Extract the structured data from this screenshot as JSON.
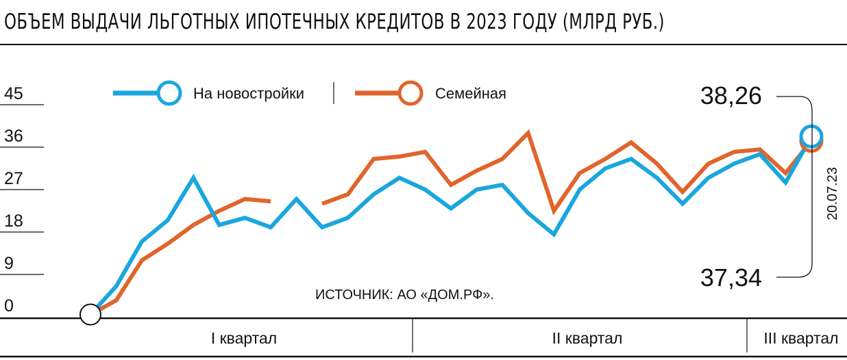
{
  "title": "ОБЪЕМ ВЫДАЧИ ЛЬГОТНЫХ ИПОТЕЧНЫХ КРЕДИТОВ В 2023 ГОДУ (МЛРД РУБ.)",
  "source": "ИСТОЧНИК: АО «ДОМ.РФ».",
  "legend": {
    "new_buildings": "На новостройки",
    "family": "Семейная"
  },
  "quarters": [
    "I квартал",
    "II квартал",
    "III квартал"
  ],
  "end_values": {
    "new_buildings": "38,26",
    "family": "37,34"
  },
  "end_date": "20.07.23",
  "colors": {
    "new_buildings": "#1aa6df",
    "family": "#e0652c"
  },
  "chart_data": {
    "type": "line",
    "title": "ОБЪЕМ ВЫДАЧИ ЛЬГОТНЫХ ИПОТЕЧНЫХ КРЕДИТОВ В 2023 ГОДУ (МЛРД РУБ.)",
    "xlabel": "",
    "ylabel": "",
    "ylim": [
      0,
      45
    ],
    "yticks": [
      0,
      9,
      18,
      27,
      36,
      45
    ],
    "grid": false,
    "legend_position": "top",
    "x": [
      0,
      1,
      2,
      3,
      4,
      5,
      6,
      7,
      8,
      9,
      10,
      11,
      12,
      13,
      14,
      15,
      16,
      17,
      18,
      19,
      20,
      21,
      22,
      23,
      24,
      25,
      26,
      27,
      28
    ],
    "x_groups": [
      {
        "label": "I квартал",
        "start": 0,
        "end": 12
      },
      {
        "label": "II квартал",
        "start": 12,
        "end": 25
      },
      {
        "label": "III квартал",
        "start": 25,
        "end": 28
      }
    ],
    "series": [
      {
        "name": "На новостройки",
        "values": [
          0.5,
          6.5,
          16,
          20.5,
          29.5,
          19.5,
          21,
          19,
          25,
          19,
          21,
          26,
          29.5,
          27,
          23,
          27,
          28,
          22,
          17.5,
          27,
          31.5,
          33.5,
          29.5,
          24,
          29.5,
          32.5,
          34.5,
          28.5,
          38.26
        ]
      },
      {
        "name": "Семейная",
        "values": [
          0.5,
          3.5,
          12,
          15.5,
          19.5,
          22.5,
          25,
          24.5,
          null,
          24,
          26,
          33.5,
          34,
          35,
          28,
          31,
          33.5,
          39,
          22.5,
          30.5,
          33.5,
          37,
          32.5,
          26.5,
          32.5,
          35,
          35.5,
          30.5,
          37.34
        ]
      }
    ]
  }
}
